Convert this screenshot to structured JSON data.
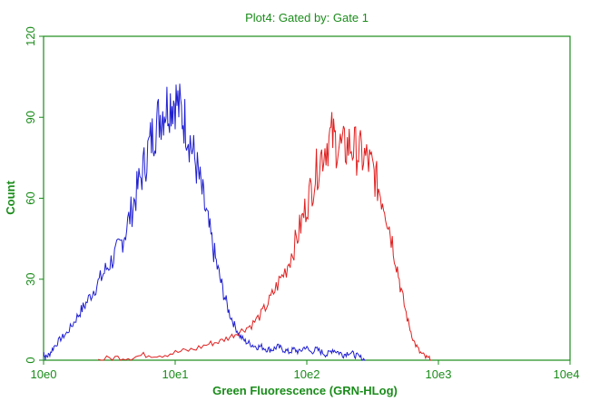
{
  "chart_data": {
    "type": "line",
    "title": "Plot4:  Gated by: Gate 1",
    "xlabel": "Green Fluorescence (GRN-HLog)",
    "ylabel": "Count",
    "x_scale": "log",
    "xlim": [
      1,
      10000
    ],
    "ylim": [
      0,
      120
    ],
    "x_ticks": [
      {
        "value": 1,
        "label": "10e0"
      },
      {
        "value": 10,
        "label": "10e1"
      },
      {
        "value": 100,
        "label": "10e2"
      },
      {
        "value": 1000,
        "label": "10e3"
      },
      {
        "value": 10000,
        "label": "10e4"
      }
    ],
    "y_ticks": [
      {
        "value": 0,
        "label": "0"
      },
      {
        "value": 30,
        "label": "30"
      },
      {
        "value": 60,
        "label": "60"
      },
      {
        "value": 90,
        "label": "90"
      },
      {
        "value": 120,
        "label": "120"
      }
    ],
    "grid": false,
    "legend": "none",
    "axis_color": "#1a8c1a",
    "series": [
      {
        "color": "#1f1fd0",
        "x": [
          1,
          1.03,
          1.1,
          1.2,
          1.35,
          1.5,
          1.7,
          1.9,
          2.1,
          2.4,
          2.7,
          3.0,
          3.4,
          3.8,
          4.2,
          4.7,
          5.2,
          5.8,
          6.4,
          7.0,
          7.7,
          8.4,
          9.2,
          10.0,
          11.0,
          12.0,
          13.2,
          14.5,
          16.0,
          17.5,
          19.3,
          21.2,
          23.3,
          25.6,
          28.2,
          31.0,
          34.1,
          37.5,
          41.2,
          45.3,
          50,
          55,
          60,
          66,
          73,
          80,
          88,
          97,
          107,
          118,
          130,
          143,
          157,
          173,
          190,
          209,
          230,
          253,
          279
        ],
        "values": [
          3,
          1,
          2,
          5,
          8,
          10,
          14,
          18,
          21,
          26,
          30,
          34,
          38,
          42,
          48,
          56,
          64,
          72,
          80,
          86,
          91,
          94,
          96,
          97,
          92,
          88,
          80,
          72,
          62,
          52,
          42,
          33,
          25,
          18,
          13,
          9,
          7,
          6,
          5,
          5,
          4,
          4,
          5,
          4,
          3,
          4,
          3,
          5,
          3,
          4,
          3,
          2,
          4,
          3,
          2,
          3,
          2,
          1,
          0
        ]
      },
      {
        "color": "#e02020",
        "x": [
          2.6,
          3.5,
          4.6,
          6.0,
          8.0,
          10.5,
          13.8,
          18,
          22,
          27,
          32,
          38,
          45,
          52,
          60,
          70,
          80,
          90,
          100,
          112,
          125,
          140,
          155,
          170,
          190,
          210,
          235,
          260,
          290,
          320,
          350,
          390,
          430,
          480,
          530,
          590,
          650,
          720,
          800,
          880
        ],
        "values": [
          0,
          1,
          1,
          2,
          2,
          3,
          4,
          6,
          7,
          9,
          11,
          13,
          17,
          22,
          28,
          34,
          42,
          50,
          58,
          66,
          74,
          80,
          83,
          80,
          78,
          80,
          78,
          76,
          74,
          70,
          64,
          58,
          48,
          36,
          24,
          14,
          7,
          3,
          1,
          0
        ]
      }
    ]
  }
}
